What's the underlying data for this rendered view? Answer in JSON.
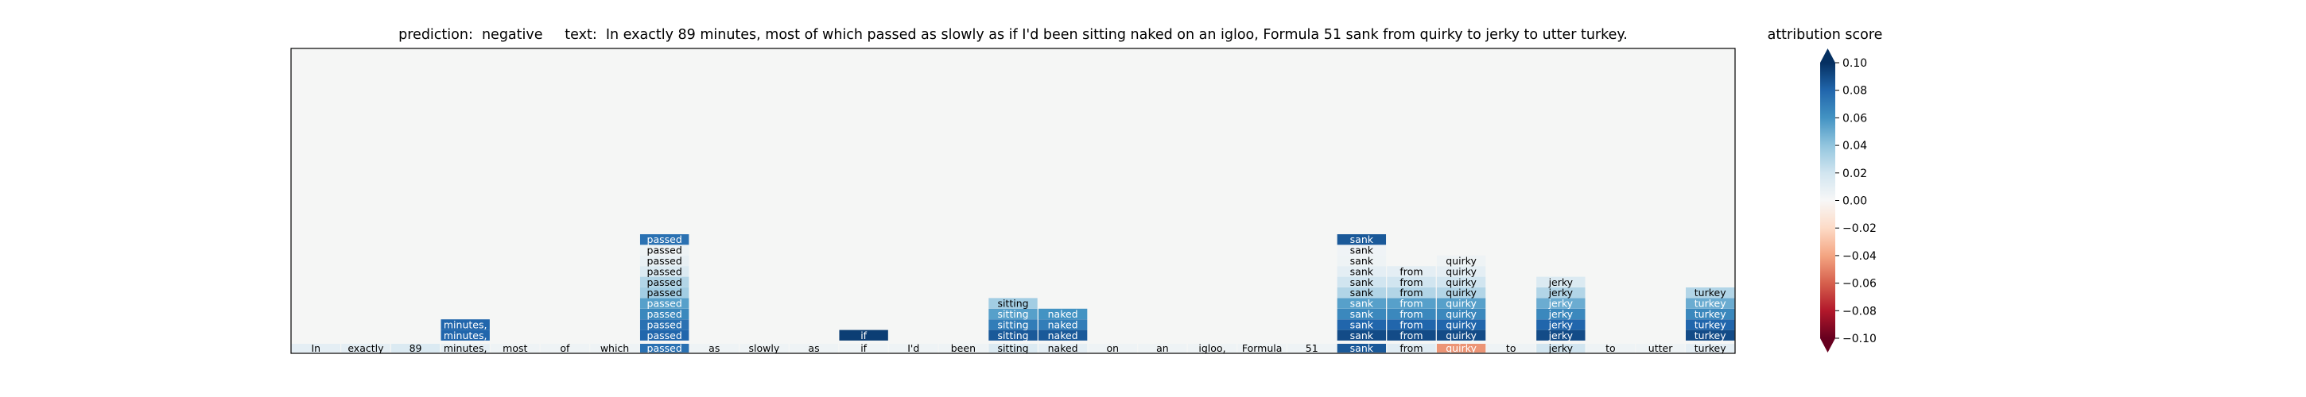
{
  "chart_data": {
    "type": "heatmap",
    "title": "prediction:  negative     text:  In exactly 89 minutes, most of which passed as slowly as if I'd been sitting naked on an igloo, Formula 51 sank from quirky to jerky to utter turkey.",
    "colorbar_label": "attribution score",
    "colorbar_ticks": [
      "0.10",
      "0.08",
      "0.06",
      "0.04",
      "0.02",
      "0.00",
      "−0.02",
      "−0.04",
      "−0.06",
      "−0.08",
      "−0.10"
    ],
    "colorbar_tick_values": [
      0.1,
      0.08,
      0.06,
      0.04,
      0.02,
      0.0,
      -0.02,
      -0.04,
      -0.06,
      -0.08,
      -0.1
    ],
    "vmin": -0.1,
    "vmax": 0.1,
    "colormap": "RdBu",
    "background_color": "#f5f6f5",
    "tokens": [
      "In",
      "exactly",
      "89",
      "minutes,",
      "most",
      "of",
      "which",
      "passed",
      "as",
      "slowly",
      "as",
      "if",
      "I'd",
      "been",
      "sitting",
      "naked",
      "on",
      "an",
      "igloo,",
      "Formula",
      "51",
      "sank",
      "from",
      "quirky",
      "to",
      "jerky",
      "to",
      "utter",
      "turkey"
    ],
    "token_scores": [
      0.01,
      0.01,
      0.015,
      0.01,
      0.005,
      0.005,
      0.005,
      0.075,
      0.005,
      0.005,
      0.005,
      0.005,
      0.005,
      0.005,
      0.015,
      0.01,
      0.005,
      0.005,
      0.005,
      0.005,
      0.005,
      0.085,
      0.012,
      -0.045,
      0.005,
      0.02,
      0.005,
      0.005,
      0.01
    ],
    "stacks": [
      {
        "token_index": 3,
        "label": "minutes,",
        "scores": [
          0.08,
          0.08
        ]
      },
      {
        "token_index": 7,
        "label": "passed",
        "scores": [
          0.08,
          0.075,
          0.065,
          0.055,
          0.035,
          0.03,
          0.015,
          0.008,
          0.005,
          0.075
        ]
      },
      {
        "token_index": 11,
        "label": "if",
        "scores": [
          0.095
        ]
      },
      {
        "token_index": 14,
        "label": "sitting",
        "scores": [
          0.085,
          0.07,
          0.055,
          0.035
        ]
      },
      {
        "token_index": 15,
        "label": "naked",
        "scores": [
          0.085,
          0.07,
          0.06
        ]
      },
      {
        "token_index": 21,
        "label": "sank",
        "scores": [
          0.09,
          0.08,
          0.065,
          0.055,
          0.03,
          0.02,
          0.01,
          0.005,
          0.004,
          0.085
        ]
      },
      {
        "token_index": 22,
        "label": "from",
        "scores": [
          0.09,
          0.08,
          0.065,
          0.055,
          0.03,
          0.02,
          0.01
        ]
      },
      {
        "token_index": 23,
        "label": "quirky",
        "scores": [
          0.09,
          0.08,
          0.065,
          0.055,
          0.03,
          0.02,
          0.01,
          0.005
        ]
      },
      {
        "token_index": 25,
        "label": "jerky",
        "scores": [
          0.09,
          0.08,
          0.065,
          0.05,
          0.03,
          0.015
        ]
      },
      {
        "token_index": 28,
        "label": "turkey",
        "scores": [
          0.09,
          0.08,
          0.065,
          0.05,
          0.03
        ]
      }
    ]
  }
}
